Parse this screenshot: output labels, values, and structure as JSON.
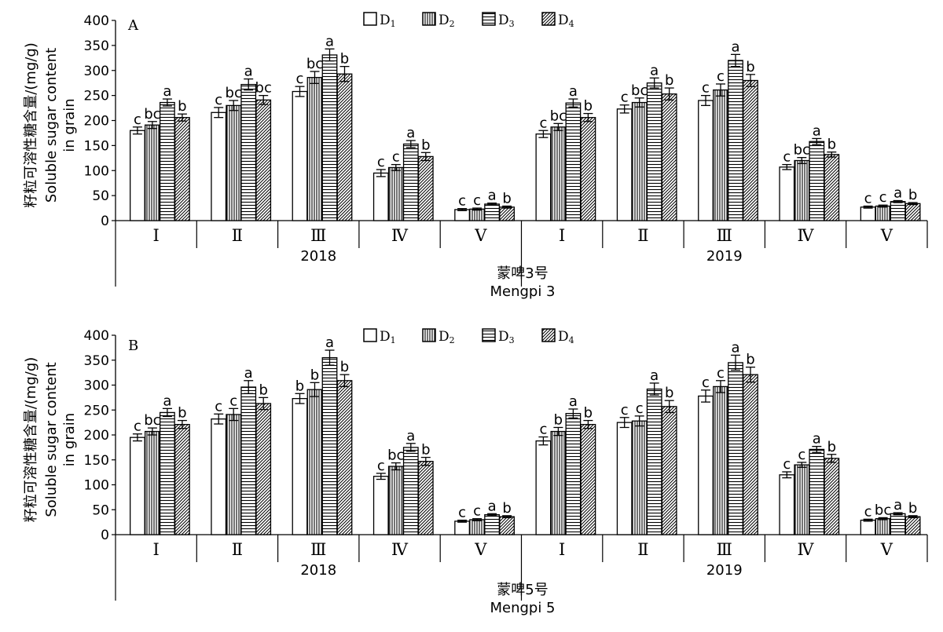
{
  "chart_data": [
    {
      "type": "bar",
      "panel_label": "A",
      "cultivar_cn": "蒙啤3号",
      "cultivar_en": "Mengpi 3",
      "ylabel_cn": "籽粒可溶性糖含量/(mg/g)",
      "ylabel_en_1": "Soluble sugar content",
      "ylabel_en_2": "in grain",
      "ylim": [
        0,
        400
      ],
      "yticks": [
        "0",
        "50",
        "100",
        "150",
        "200",
        "250",
        "300",
        "350",
        "400"
      ],
      "groups": [
        {
          "year": "2018",
          "categories": [
            "Ⅰ",
            "Ⅱ",
            "Ⅲ",
            "Ⅳ",
            "Ⅴ"
          ]
        },
        {
          "year": "2019",
          "categories": [
            "Ⅰ",
            "Ⅱ",
            "Ⅲ",
            "Ⅳ",
            "Ⅴ"
          ]
        }
      ],
      "legend_position": "top-center",
      "series": [
        {
          "name": "D1",
          "name_main": "D",
          "name_sub": "1",
          "pattern": "blank",
          "values": [
            180,
            216,
            258,
            95,
            22,
            173,
            223,
            240,
            107,
            27
          ],
          "errors": [
            7,
            10,
            10,
            7,
            2,
            7,
            8,
            10,
            5,
            2
          ],
          "letters": [
            "c",
            "c",
            "c",
            "c",
            "c",
            "c",
            "c",
            "c",
            "c",
            "c"
          ]
        },
        {
          "name": "D2",
          "name_main": "D",
          "name_sub": "2",
          "pattern": "vertical",
          "values": [
            191,
            230,
            286,
            106,
            23,
            187,
            236,
            261,
            120,
            29
          ],
          "errors": [
            7,
            10,
            12,
            6,
            2,
            7,
            9,
            12,
            6,
            2
          ],
          "letters": [
            "bc",
            "bc",
            "bc",
            "c",
            "c",
            "bc",
            "bc",
            "c",
            "bc",
            "c"
          ]
        },
        {
          "name": "D3",
          "name_main": "D",
          "name_sub": "3",
          "pattern": "horizontal",
          "values": [
            236,
            272,
            331,
            153,
            33,
            235,
            275,
            320,
            158,
            38
          ],
          "errors": [
            7,
            11,
            12,
            7,
            2,
            8,
            10,
            12,
            6,
            2
          ],
          "letters": [
            "a",
            "a",
            "a",
            "a",
            "a",
            "a",
            "a",
            "a",
            "a",
            "a"
          ]
        },
        {
          "name": "D4",
          "name_main": "D",
          "name_sub": "4",
          "pattern": "diagonal",
          "values": [
            206,
            241,
            293,
            128,
            27,
            206,
            253,
            280,
            132,
            34
          ],
          "errors": [
            7,
            9,
            15,
            8,
            2,
            8,
            12,
            12,
            5,
            2
          ],
          "letters": [
            "b",
            "bc",
            "b",
            "b",
            "b",
            "b",
            "b",
            "b",
            "b",
            "b"
          ]
        }
      ]
    },
    {
      "type": "bar",
      "panel_label": "B",
      "cultivar_cn": "蒙啤5号",
      "cultivar_en": "Mengpi 5",
      "ylabel_cn": "籽粒可溶性糖含量/(mg/g)",
      "ylabel_en_1": "Soluble sugar content",
      "ylabel_en_2": "in grain",
      "ylim": [
        0,
        400
      ],
      "yticks": [
        "0",
        "50",
        "100",
        "150",
        "200",
        "250",
        "300",
        "350",
        "400"
      ],
      "groups": [
        {
          "year": "2018",
          "categories": [
            "Ⅰ",
            "Ⅱ",
            "Ⅲ",
            "Ⅳ",
            "Ⅴ"
          ]
        },
        {
          "year": "2019",
          "categories": [
            "Ⅰ",
            "Ⅱ",
            "Ⅲ",
            "Ⅳ",
            "Ⅴ"
          ]
        }
      ],
      "legend_position": "top-center",
      "series": [
        {
          "name": "D1",
          "name_main": "D",
          "name_sub": "1",
          "pattern": "blank",
          "values": [
            195,
            232,
            273,
            117,
            27,
            188,
            225,
            278,
            120,
            29
          ],
          "errors": [
            7,
            10,
            10,
            6,
            2,
            8,
            10,
            12,
            6,
            2
          ],
          "letters": [
            "c",
            "c",
            "b",
            "c",
            "c",
            "c",
            "c",
            "c",
            "c",
            "c"
          ]
        },
        {
          "name": "D2",
          "name_main": "D",
          "name_sub": "2",
          "pattern": "vertical",
          "values": [
            207,
            241,
            291,
            137,
            30,
            207,
            228,
            297,
            140,
            32
          ],
          "errors": [
            7,
            12,
            14,
            7,
            2,
            8,
            10,
            12,
            5,
            2
          ],
          "letters": [
            "bc",
            "c",
            "b",
            "bc",
            "c",
            "b",
            "c",
            "c",
            "c",
            "bc"
          ]
        },
        {
          "name": "D3",
          "name_main": "D",
          "name_sub": "3",
          "pattern": "horizontal",
          "values": [
            245,
            296,
            355,
            175,
            40,
            243,
            292,
            345,
            171,
            42
          ],
          "errors": [
            8,
            13,
            15,
            8,
            2,
            9,
            12,
            15,
            6,
            2
          ],
          "letters": [
            "a",
            "a",
            "a",
            "a",
            "a",
            "a",
            "a",
            "a",
            "a",
            "a"
          ]
        },
        {
          "name": "D4",
          "name_main": "D",
          "name_sub": "4",
          "pattern": "diagonal",
          "values": [
            221,
            263,
            309,
            147,
            36,
            221,
            257,
            321,
            153,
            36
          ],
          "errors": [
            8,
            12,
            12,
            8,
            2,
            8,
            12,
            15,
            8,
            2
          ],
          "letters": [
            "b",
            "b",
            "b",
            "b",
            "b",
            "b",
            "b",
            "b",
            "b",
            "b"
          ]
        }
      ]
    }
  ]
}
